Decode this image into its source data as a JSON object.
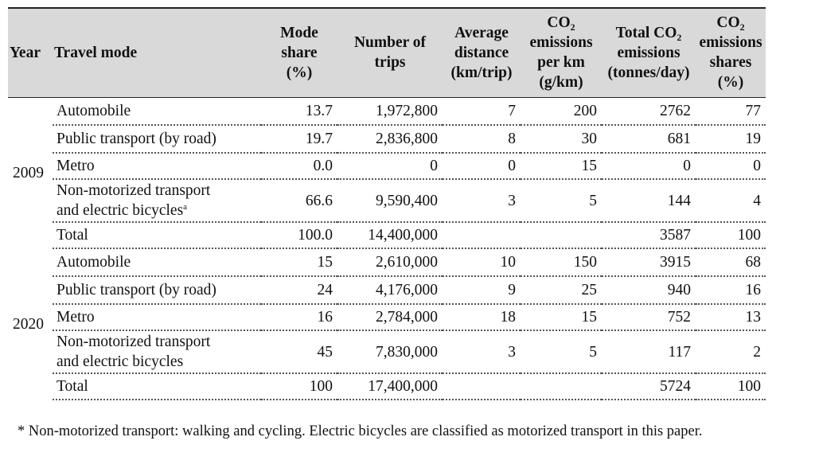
{
  "headers": {
    "year": "Year",
    "mode": "Travel mode",
    "mode_share": [
      "Mode",
      "share",
      "(%)"
    ],
    "trips": [
      "Number of",
      "trips"
    ],
    "distance": [
      "Average",
      "distance",
      "(km/trip)"
    ],
    "co2_per_km": {
      "co": "CO",
      "sub": "2",
      "rest": [
        "emissions",
        "per km",
        "(g/km)"
      ]
    },
    "total_co2": {
      "pre": "Total CO",
      "sub": "2",
      "rest": [
        "emissions",
        "(tonnes/day)"
      ]
    },
    "co2_share": {
      "co": "CO",
      "sub": "2",
      "rest": [
        "emissions",
        "shares",
        "(%)"
      ]
    }
  },
  "groups": [
    {
      "year": "2009",
      "rows": [
        {
          "mode": "Automobile",
          "share": "13.7",
          "trips": "1,972,800",
          "dist": "7",
          "perkm": "200",
          "total": "2762",
          "pct": "77"
        },
        {
          "mode": "Public transport (by road)",
          "share": "19.7",
          "trips": "2,836,800",
          "dist": "8",
          "perkm": "30",
          "total": "681",
          "pct": "19"
        },
        {
          "mode": "Metro",
          "share": "0.0",
          "trips": "0",
          "dist": "0",
          "perkm": "15",
          "total": "0",
          "pct": "0"
        },
        {
          "mode_lines": [
            "Non-motorized transport",
            "and electric bicycles"
          ],
          "mode_sup": "a",
          "share": "66.6",
          "trips": "9,590,400",
          "dist": "3",
          "perkm": "5",
          "total": "144",
          "pct": "4"
        },
        {
          "mode": "Total",
          "share": "100.0",
          "trips": "14,400,000",
          "dist": "",
          "perkm": "",
          "total": "3587",
          "pct": "100"
        }
      ]
    },
    {
      "year": "2020",
      "rows": [
        {
          "mode": "Automobile",
          "share": "15",
          "trips": "2,610,000",
          "dist": "10",
          "perkm": "150",
          "total": "3915",
          "pct": "68"
        },
        {
          "mode": "Public transport (by road)",
          "share": "24",
          "trips": "4,176,000",
          "dist": "9",
          "perkm": "25",
          "total": "940",
          "pct": "16"
        },
        {
          "mode": "Metro",
          "share": "16",
          "trips": "2,784,000",
          "dist": "18",
          "perkm": "15",
          "total": "752",
          "pct": "13"
        },
        {
          "mode_lines": [
            " Non-motorized transport",
            "and electric bicycles"
          ],
          "mode_sup": "",
          "share": "45",
          "trips": "7,830,000",
          "dist": "3",
          "perkm": "5",
          "total": "117",
          "pct": "2"
        },
        {
          "mode": "Total",
          "share": "100",
          "trips": "17,400,000",
          "dist": "",
          "perkm": "",
          "total": "5724",
          "pct": "100"
        }
      ]
    }
  ],
  "footnote": "* Non-motorized transport: walking and cycling. Electric bicycles are classified as motorized transport in this paper."
}
